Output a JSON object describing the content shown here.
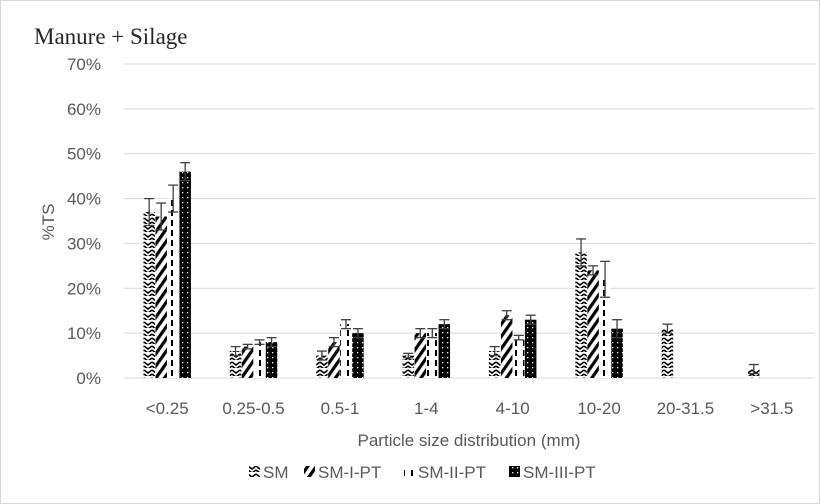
{
  "chart_data": {
    "type": "bar",
    "title": "Manure + Silage",
    "xlabel": "Particle size distribution (mm)",
    "ylabel": "%TS",
    "ylim": [
      0,
      70
    ],
    "yticks": [
      "0%",
      "10%",
      "20%",
      "30%",
      "40%",
      "50%",
      "60%",
      "70%"
    ],
    "grid": true,
    "legend_position": "bottom",
    "categories": [
      "<0.25",
      "0.25-0.5",
      "0.5-1",
      "1-4",
      "4-10",
      "10-20",
      "20-31.5",
      ">31.5"
    ],
    "series": [
      {
        "name": "SM",
        "pattern": "zigzag",
        "values": [
          37,
          6,
          5,
          5,
          6,
          28,
          11,
          2
        ],
        "errors": [
          3,
          1,
          1,
          0.5,
          1,
          3,
          1,
          1
        ]
      },
      {
        "name": "SM-I-PT",
        "pattern": "diagonal",
        "values": [
          36,
          7,
          8,
          10,
          14,
          24,
          0,
          0
        ],
        "errors": [
          3,
          0.5,
          1,
          1,
          1,
          1,
          0,
          0
        ]
      },
      {
        "name": "SM-II-PT",
        "pattern": "dashed-vertical",
        "values": [
          40,
          8,
          12,
          10,
          9,
          22,
          0,
          0
        ],
        "errors": [
          3,
          0.5,
          1,
          1,
          0.5,
          4,
          0,
          0
        ]
      },
      {
        "name": "SM-III-PT",
        "pattern": "dotted-black",
        "values": [
          46,
          8,
          10,
          12,
          13,
          11,
          0,
          0
        ],
        "errors": [
          2,
          1,
          1,
          1,
          1,
          2,
          0,
          0
        ]
      }
    ],
    "colors": {
      "grid": "#d9d9d9",
      "axis": "#d9d9d9",
      "text": "#595959",
      "bar": "#000000",
      "error": "#404040"
    }
  }
}
